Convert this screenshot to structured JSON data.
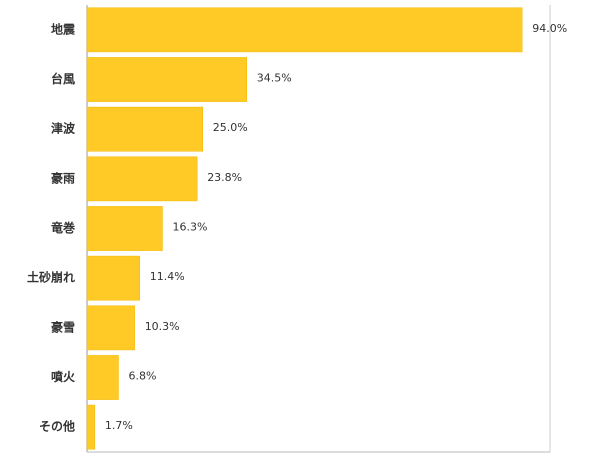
{
  "chart_data": {
    "type": "hbar",
    "categories": [
      "地震",
      "台風",
      "津波",
      "豪雨",
      "竜巻",
      "土砂崩れ",
      "豪雪",
      "噴火",
      "その他"
    ],
    "values": [
      94.0,
      34.5,
      25.0,
      23.8,
      16.3,
      11.4,
      10.3,
      6.8,
      1.7
    ],
    "value_labels": [
      "94.0%",
      "34.5%",
      "25.0%",
      "23.8%",
      "16.3%",
      "11.4%",
      "10.3%",
      "6.8%",
      "1.7%"
    ],
    "color": "#ffc926",
    "xlim": [
      0,
      100
    ]
  }
}
